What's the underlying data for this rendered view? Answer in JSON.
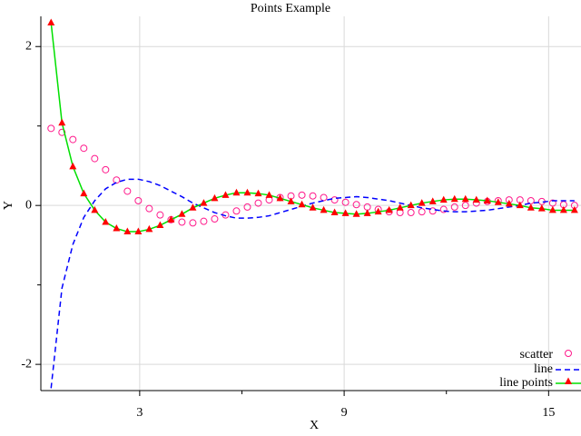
{
  "chart_data": {
    "type": "line",
    "title": "Points Example",
    "x_label": "X",
    "y_label": "Y",
    "x": [
      0.4,
      0.72,
      1.04,
      1.36,
      1.68,
      2.0,
      2.32,
      2.64,
      2.96,
      3.28,
      3.6,
      3.92,
      4.24,
      4.56,
      4.88,
      5.2,
      5.52,
      5.84,
      6.16,
      6.48,
      6.8,
      7.12,
      7.44,
      7.76,
      8.08,
      8.4,
      8.72,
      9.04,
      9.36,
      9.68,
      10.0,
      10.32,
      10.64,
      10.96,
      11.28,
      11.6,
      11.92,
      12.24,
      12.56,
      12.88,
      13.2,
      13.52,
      13.84,
      14.16,
      14.48,
      14.8,
      15.12,
      15.44,
      15.76
    ],
    "series": [
      {
        "name": "scatter",
        "mode": "markers",
        "marker": "circle",
        "color": "#ff1a8c",
        "values": [
          0.97,
          0.92,
          0.83,
          0.72,
          0.59,
          0.45,
          0.32,
          0.18,
          0.06,
          -0.04,
          -0.12,
          -0.18,
          -0.21,
          -0.22,
          -0.2,
          -0.17,
          -0.12,
          -0.07,
          -0.02,
          0.03,
          0.07,
          0.1,
          0.12,
          0.13,
          0.12,
          0.1,
          0.07,
          0.04,
          0.01,
          -0.02,
          -0.05,
          -0.08,
          -0.09,
          -0.09,
          -0.08,
          -0.07,
          -0.05,
          -0.02,
          0.0,
          0.03,
          0.05,
          0.06,
          0.07,
          0.07,
          0.06,
          0.05,
          0.03,
          0.01,
          0.0
        ]
      },
      {
        "name": "line",
        "mode": "lines",
        "dash": true,
        "color": "#0000ff",
        "values": [
          -2.3,
          -1.04,
          -0.49,
          -0.15,
          0.06,
          0.21,
          0.29,
          0.33,
          0.33,
          0.3,
          0.25,
          0.18,
          0.11,
          0.03,
          -0.03,
          -0.09,
          -0.13,
          -0.16,
          -0.16,
          -0.15,
          -0.13,
          -0.09,
          -0.05,
          -0.01,
          0.03,
          0.06,
          0.09,
          0.1,
          0.11,
          0.1,
          0.08,
          0.06,
          0.03,
          0.0,
          -0.03,
          -0.05,
          -0.07,
          -0.08,
          -0.08,
          -0.07,
          -0.06,
          -0.04,
          -0.02,
          0.0,
          0.03,
          0.04,
          0.06,
          0.06,
          0.06
        ]
      },
      {
        "name": "line points",
        "mode": "lines+markers",
        "marker": "triangle",
        "color": "#00e000",
        "marker_color": "#ff0000",
        "values": [
          2.3,
          1.04,
          0.49,
          0.15,
          -0.06,
          -0.21,
          -0.29,
          -0.33,
          -0.33,
          -0.3,
          -0.25,
          -0.18,
          -0.11,
          -0.03,
          0.03,
          0.09,
          0.13,
          0.16,
          0.16,
          0.15,
          0.13,
          0.09,
          0.05,
          0.01,
          -0.03,
          -0.06,
          -0.09,
          -0.1,
          -0.11,
          -0.1,
          -0.08,
          -0.06,
          -0.03,
          0.0,
          0.03,
          0.05,
          0.07,
          0.08,
          0.08,
          0.07,
          0.06,
          0.04,
          0.02,
          0.0,
          -0.03,
          -0.04,
          -0.06,
          -0.06,
          -0.06
        ]
      }
    ],
    "xlim": [
      0.1,
      15.95
    ],
    "ylim": [
      -2.33,
      2.38
    ],
    "xticks": [
      3,
      9,
      15
    ],
    "yticks": [
      -2,
      0,
      2
    ],
    "xminor": [
      6,
      12
    ],
    "yminor": [
      -1,
      1
    ],
    "grid": true,
    "legend": "bottom-right"
  }
}
